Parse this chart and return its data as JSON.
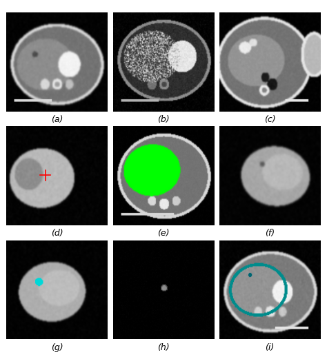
{
  "figsize": [
    4.74,
    5.21
  ],
  "dpi": 100,
  "background_color": "#ffffff",
  "nrows": 3,
  "ncols": 3,
  "labels": [
    "(a)",
    "(b)",
    "(c)",
    "(d)",
    "(e)",
    "(f)",
    "(g)",
    "(h)",
    "(i)"
  ],
  "label_fontsize": 9,
  "hspace": 0.15,
  "wspace": 0.05
}
